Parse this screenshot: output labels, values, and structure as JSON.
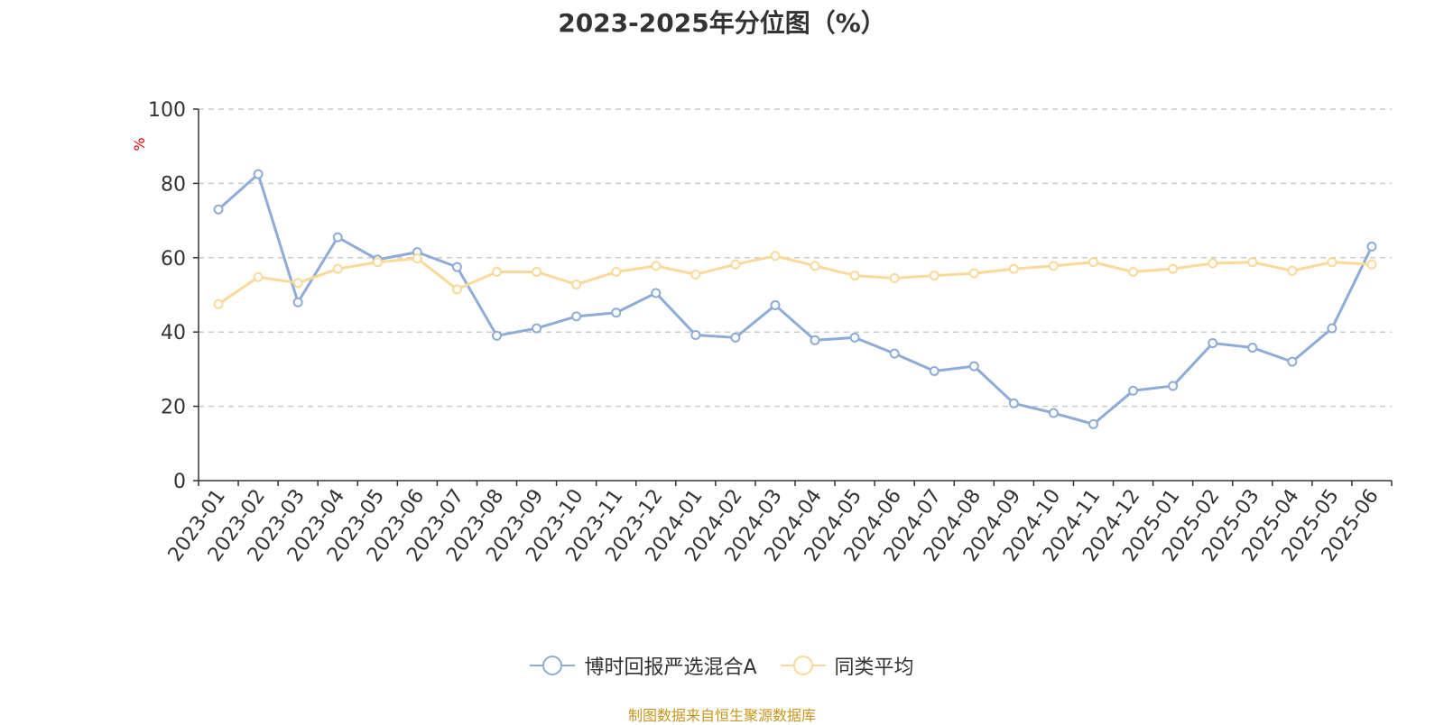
{
  "chart_data": {
    "type": "line",
    "title": "2023-2025年分位图（%）",
    "ylabel": "%",
    "ylim": [
      0,
      100
    ],
    "yticks": [
      0,
      20,
      40,
      60,
      80,
      100
    ],
    "grid": "horizontal-dashed",
    "legend_position": "bottom",
    "categories": [
      "2023-01",
      "2023-02",
      "2023-03",
      "2023-04",
      "2023-05",
      "2023-06",
      "2023-07",
      "2023-08",
      "2023-09",
      "2023-10",
      "2023-11",
      "2023-12",
      "2024-01",
      "2024-02",
      "2024-03",
      "2024-04",
      "2024-05",
      "2024-06",
      "2024-07",
      "2024-08",
      "2024-09",
      "2024-10",
      "2024-11",
      "2024-12",
      "2025-01",
      "2025-02",
      "2025-03",
      "2025-04",
      "2025-05",
      "2025-06"
    ],
    "series": [
      {
        "name": "博时回报严选混合A",
        "color": "#8eacd8",
        "values": [
          73.0,
          82.5,
          48.0,
          65.5,
          59.5,
          61.5,
          57.5,
          39.0,
          41.0,
          44.2,
          45.2,
          50.5,
          39.2,
          38.5,
          47.2,
          37.8,
          38.5,
          34.2,
          29.5,
          30.8,
          20.8,
          18.2,
          15.2,
          24.2,
          25.5,
          37.0,
          35.8,
          32.0,
          41.0,
          63.0
        ]
      },
      {
        "name": "同类平均",
        "color": "#fbd99a",
        "values": [
          47.5,
          54.8,
          53.2,
          57.0,
          58.8,
          59.8,
          51.5,
          56.2,
          56.2,
          52.8,
          56.2,
          57.8,
          55.5,
          58.2,
          60.5,
          57.8,
          55.2,
          54.5,
          55.2,
          55.8,
          57.0,
          57.8,
          58.8,
          56.2,
          57.0,
          58.5,
          58.8,
          56.5,
          58.8,
          58.2
        ]
      }
    ]
  },
  "source_note": "制图数据来自恒生聚源数据库"
}
